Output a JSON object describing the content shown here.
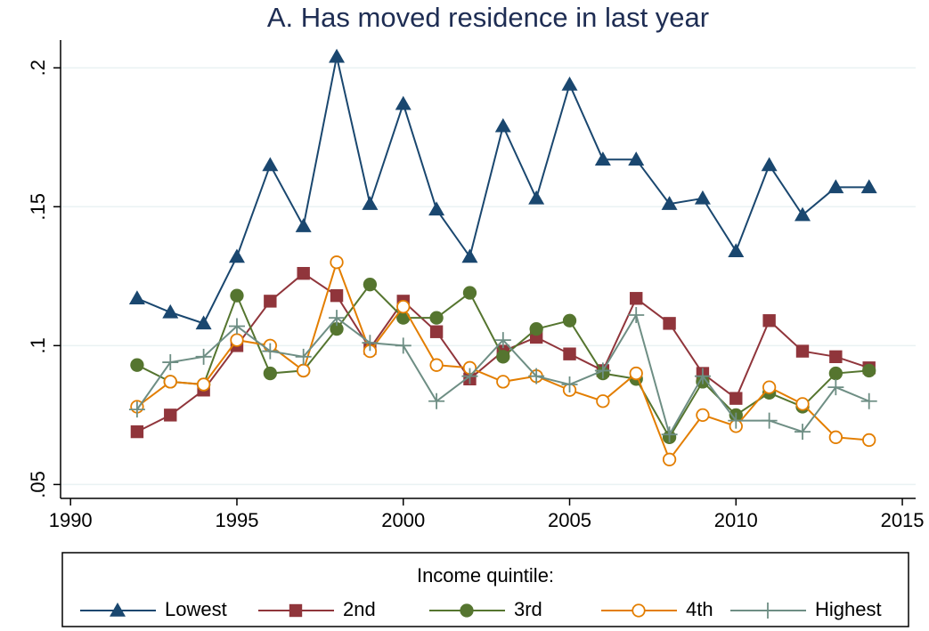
{
  "chart_data": {
    "type": "line",
    "title": "A. Has moved residence in last year",
    "x": [
      1992,
      1993,
      1994,
      1995,
      1996,
      1997,
      1998,
      1999,
      2000,
      2001,
      2002,
      2003,
      2004,
      2005,
      2006,
      2007,
      2008,
      2009,
      2010,
      2011,
      2012,
      2013,
      2014
    ],
    "series": [
      {
        "name": "Lowest",
        "color": "#1a476f",
        "marker": "triangle",
        "values": [
          0.117,
          0.112,
          0.108,
          0.132,
          0.165,
          0.143,
          0.204,
          0.151,
          0.187,
          0.149,
          0.132,
          0.179,
          0.153,
          0.194,
          0.167,
          0.167,
          0.151,
          0.153,
          0.134,
          0.165,
          0.147,
          0.157,
          0.157
        ]
      },
      {
        "name": "2nd",
        "color": "#90353b",
        "marker": "square",
        "values": [
          0.069,
          0.075,
          0.084,
          0.1,
          0.116,
          0.126,
          0.118,
          0.099,
          0.116,
          0.105,
          0.088,
          0.098,
          0.103,
          0.097,
          0.091,
          0.117,
          0.108,
          0.09,
          0.081,
          0.109,
          0.098,
          0.096,
          0.092
        ]
      },
      {
        "name": "3rd",
        "color": "#55752f",
        "marker": "circle",
        "values": [
          0.093,
          0.087,
          0.086,
          0.118,
          0.09,
          0.091,
          0.106,
          0.122,
          0.11,
          0.11,
          0.119,
          0.096,
          0.106,
          0.109,
          0.09,
          0.088,
          0.067,
          0.087,
          0.075,
          0.083,
          0.078,
          0.09,
          0.091
        ]
      },
      {
        "name": "4th",
        "color": "#e37e00",
        "marker": "hollow-circle",
        "values": [
          0.078,
          0.087,
          0.086,
          0.102,
          0.1,
          0.091,
          0.13,
          0.098,
          0.114,
          0.093,
          0.092,
          0.087,
          0.089,
          0.084,
          0.08,
          0.09,
          0.059,
          0.075,
          0.071,
          0.085,
          0.079,
          0.067,
          0.066
        ]
      },
      {
        "name": "Highest",
        "color": "#6e8e84",
        "marker": "plus",
        "values": [
          0.077,
          0.094,
          0.096,
          0.107,
          0.098,
          0.096,
          0.11,
          0.101,
          0.1,
          0.08,
          0.089,
          0.102,
          0.089,
          0.086,
          0.091,
          0.111,
          0.068,
          0.089,
          0.073,
          0.073,
          0.069,
          0.085,
          0.08
        ]
      }
    ],
    "xlim": [
      1989.7,
      2015.4
    ],
    "ylim": [
      0.045,
      0.21
    ],
    "xticks": [
      1990,
      1995,
      2000,
      2005,
      2010,
      2015
    ],
    "yticks": [
      {
        "value": 0.05,
        "label": ".05"
      },
      {
        "value": 0.1,
        "label": ".1"
      },
      {
        "value": 0.15,
        "label": ".15"
      },
      {
        "value": 0.2,
        "label": ".2"
      }
    ],
    "grid": true,
    "legend": {
      "title": "Income quintile:",
      "position": "bottom"
    }
  }
}
